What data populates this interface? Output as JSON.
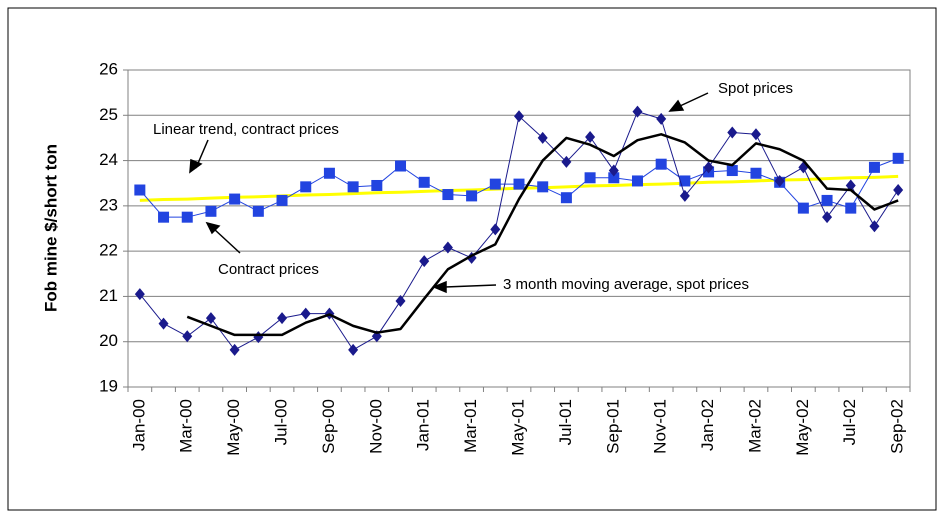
{
  "chart_data": {
    "type": "line",
    "y_label": "Fob mine $/short ton",
    "categories": [
      "Jan-00",
      null,
      "Mar-00",
      null,
      "May-00",
      null,
      "Jul-00",
      null,
      "Sep-00",
      null,
      "Nov-00",
      null,
      "Jan-01",
      null,
      "Mar-01",
      null,
      "May-01",
      null,
      "Jul-01",
      null,
      "Sep-01",
      null,
      "Nov-01",
      null,
      "Jan-02",
      null,
      "Mar-02",
      null,
      "May-02",
      null,
      "Jul-02",
      null,
      "Sep-02"
    ],
    "series": [
      {
        "name": "Linear trend, contract prices",
        "color": "#ffff00",
        "marker": "none",
        "width": 3,
        "values": [
          23.12,
          23.14,
          23.15,
          23.17,
          23.19,
          23.2,
          23.22,
          23.24,
          23.25,
          23.27,
          23.29,
          23.3,
          23.32,
          23.34,
          23.35,
          23.37,
          23.39,
          23.4,
          23.42,
          23.44,
          23.45,
          23.47,
          23.48,
          23.5,
          23.52,
          23.53,
          23.55,
          23.57,
          23.58,
          23.6,
          23.62,
          23.63,
          23.65
        ]
      },
      {
        "name": "Contract prices",
        "color": "#2244e0",
        "marker": "square",
        "width": 1,
        "values": [
          23.35,
          22.75,
          22.75,
          22.88,
          23.15,
          22.88,
          23.12,
          23.42,
          23.72,
          23.42,
          23.45,
          23.88,
          23.52,
          23.25,
          23.22,
          23.48,
          23.48,
          23.42,
          23.18,
          23.62,
          23.62,
          23.55,
          23.92,
          23.55,
          23.75,
          23.78,
          23.72,
          23.52,
          22.95,
          23.12,
          22.95,
          23.85,
          24.05
        ]
      },
      {
        "name": "Spot prices",
        "color": "#1a1a8c",
        "marker": "diamond",
        "width": 1,
        "values": [
          21.05,
          20.4,
          20.12,
          20.52,
          19.82,
          20.1,
          20.52,
          20.62,
          20.62,
          19.82,
          20.12,
          20.9,
          21.78,
          22.08,
          21.85,
          22.48,
          24.98,
          24.5,
          23.97,
          24.52,
          23.78,
          25.08,
          24.92,
          23.22,
          23.85,
          24.62,
          24.58,
          23.55,
          23.85,
          22.75,
          23.45,
          22.55,
          23.35
        ]
      },
      {
        "name": "3 month moving average, spot prices",
        "color": "#000000",
        "marker": "none",
        "width": 2.5,
        "values": [
          null,
          null,
          20.55,
          20.35,
          20.15,
          20.15,
          20.15,
          20.42,
          20.6,
          20.35,
          20.2,
          20.28,
          20.95,
          21.6,
          21.9,
          22.15,
          23.15,
          24.0,
          24.5,
          24.35,
          24.1,
          24.45,
          24.58,
          24.4,
          24.0,
          23.9,
          24.38,
          24.25,
          24.0,
          23.38,
          23.35,
          22.92,
          23.12
        ]
      }
    ],
    "ylim": [
      19,
      26
    ],
    "yticks": [
      19,
      20,
      21,
      22,
      23,
      24,
      25,
      26
    ],
    "grid": true
  }
}
